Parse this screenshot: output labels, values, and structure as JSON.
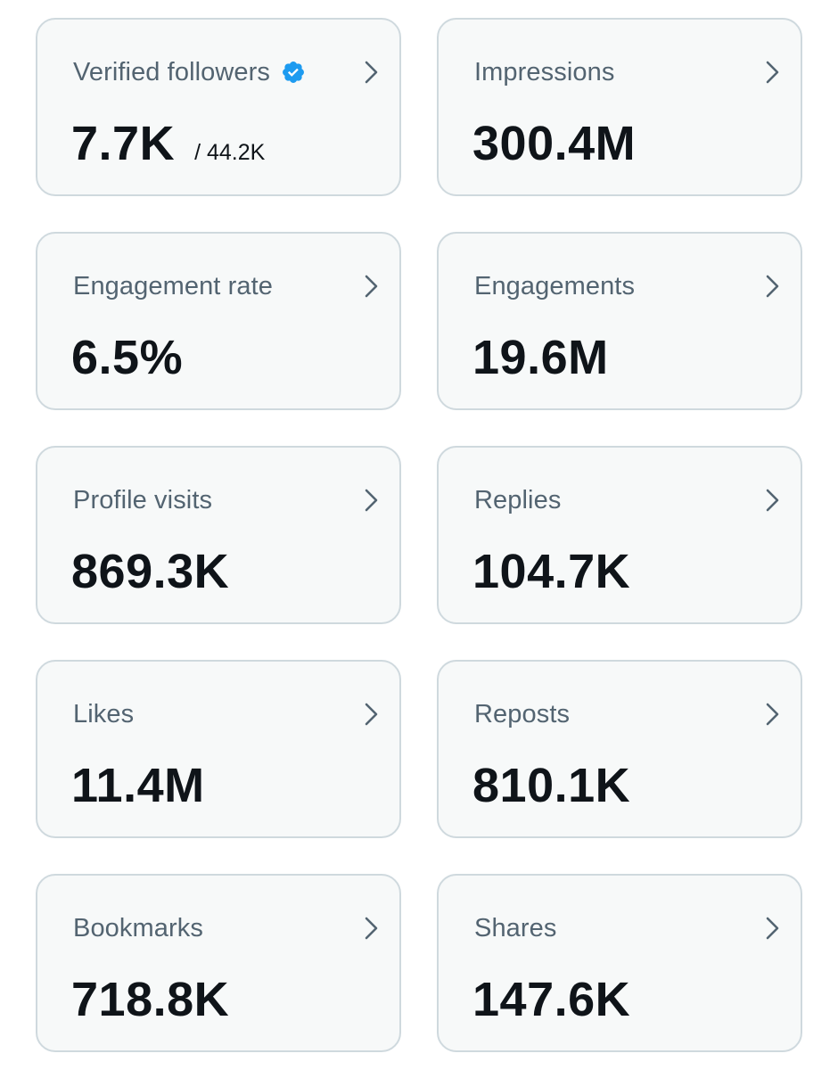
{
  "colors": {
    "card_background": "#f7f9f9",
    "card_border": "#cfd9de",
    "label_text": "#536471",
    "value_text": "#0f1419",
    "verified_badge": "#1d9bf0"
  },
  "cards": [
    {
      "label": "Verified followers",
      "value": "7.7K",
      "sub_value": "/ 44.2K",
      "icon": "verified-badge-icon"
    },
    {
      "label": "Impressions",
      "value": "300.4M"
    },
    {
      "label": "Engagement rate",
      "value": "6.5%"
    },
    {
      "label": "Engagements",
      "value": "19.6M"
    },
    {
      "label": "Profile visits",
      "value": "869.3K"
    },
    {
      "label": "Replies",
      "value": "104.7K"
    },
    {
      "label": "Likes",
      "value": "11.4M"
    },
    {
      "label": "Reposts",
      "value": "810.1K"
    },
    {
      "label": "Bookmarks",
      "value": "718.8K"
    },
    {
      "label": "Shares",
      "value": "147.6K"
    }
  ]
}
